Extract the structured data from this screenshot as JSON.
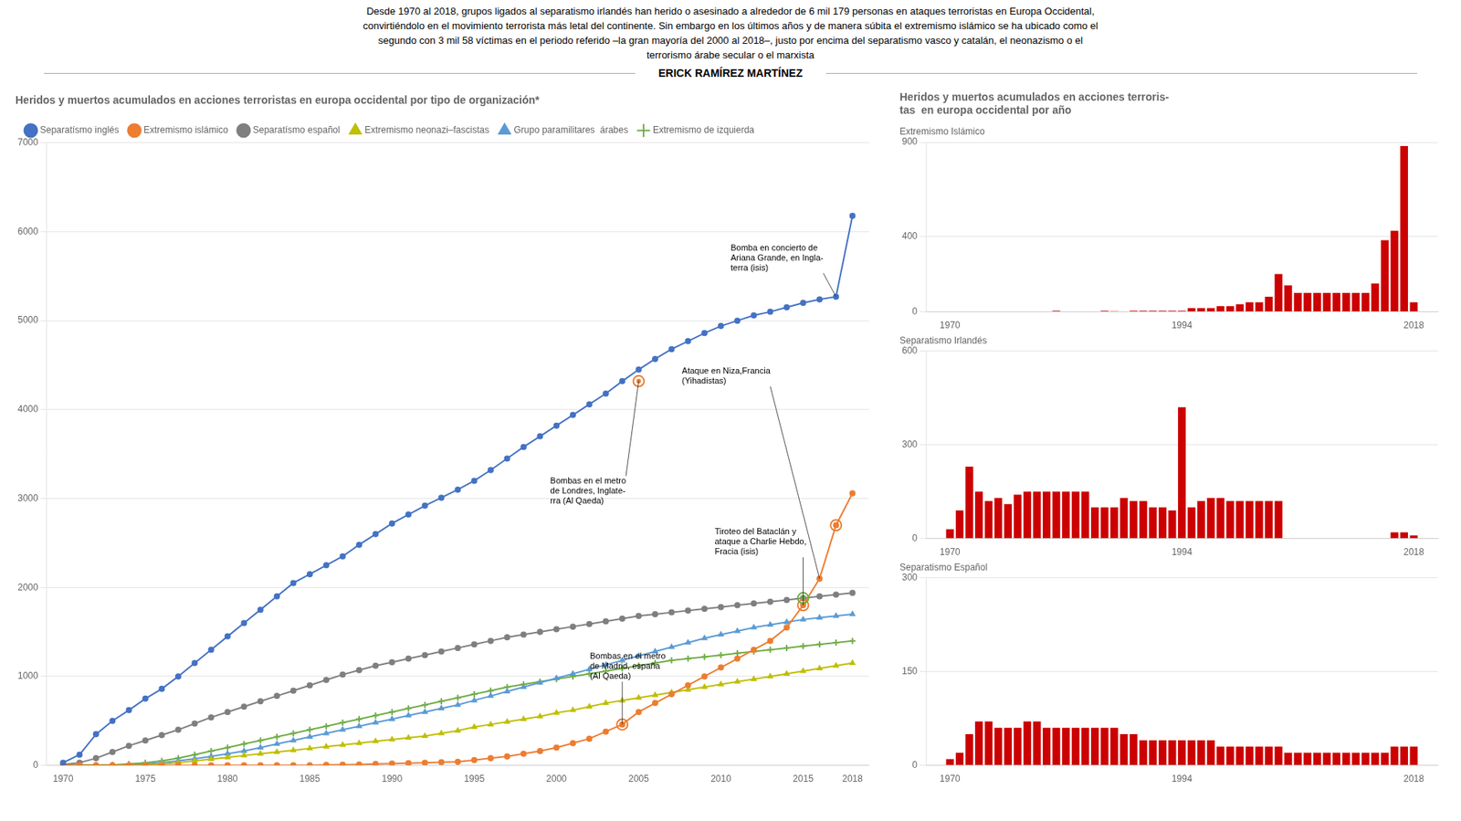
{
  "title": "Desde 1970 al 2018, grupos ligados al separatismo irlandés han herido o asesinado a alrededor de 6 mil 179 personas en ataques terroristas en Europa Occidental,\nconvirtiéndolo en el movimiento terrorista más letal del continente. Sin embargo en los últimos años y de manera súbita el extremismo islámico se ha ubicado como el\nsegundo con 3 mil 58 víctimas en el periodo referido –la gran mayoría del 2000 al 2018–, justo por encima del separatismo vasco y catalán, el neonazismo o el\nterrorismo árabe secular o el marxista",
  "subtitle": "ERICK RAMÍREZ MARTÍNEZ",
  "chart_data": [
    {
      "type": "line",
      "title": "Heridos y muertos acumulados en acciones terroristas en europa occidental por tipo de organización*",
      "x": [
        1970,
        1971,
        1972,
        1973,
        1974,
        1975,
        1976,
        1977,
        1978,
        1979,
        1980,
        1981,
        1982,
        1983,
        1984,
        1985,
        1986,
        1987,
        1988,
        1989,
        1990,
        1991,
        1992,
        1993,
        1994,
        1995,
        1996,
        1997,
        1998,
        1999,
        2000,
        2001,
        2002,
        2003,
        2004,
        2005,
        2006,
        2007,
        2008,
        2009,
        2010,
        2011,
        2012,
        2013,
        2014,
        2015,
        2016,
        2017,
        2018
      ],
      "xlim": [
        1969,
        2019
      ],
      "xticks": [
        1970,
        1975,
        1980,
        1985,
        1990,
        1995,
        2000,
        2005,
        2010,
        2015,
        2018
      ],
      "ylim": [
        0,
        7000
      ],
      "yticks": [
        0,
        1000,
        2000,
        3000,
        4000,
        5000,
        6000,
        7000
      ],
      "grid": "y",
      "legend": "top",
      "series": [
        {
          "name": "Separatísmo inglés",
          "color": "#4472C4",
          "marker": "circle",
          "values": [
            30,
            120,
            350,
            500,
            620,
            750,
            860,
            1000,
            1150,
            1300,
            1450,
            1600,
            1750,
            1900,
            2050,
            2150,
            2250,
            2350,
            2480,
            2600,
            2720,
            2820,
            2920,
            3010,
            3100,
            3200,
            3320,
            3450,
            3580,
            3700,
            3820,
            3940,
            4060,
            4180,
            4320,
            4450,
            4570,
            4680,
            4770,
            4860,
            4940,
            5000,
            5060,
            5100,
            5150,
            5200,
            5240,
            5270,
            6179
          ]
        },
        {
          "name": "Extremismo islámico",
          "color": "#ED7D31",
          "marker": "circle",
          "values": [
            0,
            0,
            0,
            0,
            0,
            0,
            0,
            0,
            0,
            0,
            0,
            0,
            0,
            0,
            0,
            0,
            5,
            8,
            10,
            15,
            20,
            25,
            30,
            35,
            40,
            60,
            80,
            100,
            130,
            160,
            200,
            250,
            300,
            380,
            460,
            600,
            700,
            800,
            900,
            1000,
            1100,
            1200,
            1300,
            1400,
            1550,
            1800,
            2100,
            2700,
            3058
          ]
        },
        {
          "name": "Separatísmo español",
          "color": "#7F7F7F",
          "marker": "circle",
          "values": [
            10,
            30,
            80,
            150,
            220,
            280,
            340,
            400,
            470,
            540,
            600,
            660,
            720,
            780,
            840,
            900,
            960,
            1020,
            1070,
            1120,
            1160,
            1200,
            1240,
            1280,
            1320,
            1360,
            1400,
            1440,
            1470,
            1500,
            1530,
            1560,
            1590,
            1620,
            1650,
            1680,
            1700,
            1720,
            1740,
            1760,
            1780,
            1800,
            1820,
            1840,
            1860,
            1880,
            1900,
            1920,
            1940
          ]
        },
        {
          "name": "Extremismo neonazi–fascistas",
          "color": "#BFBF00",
          "marker": "triangle",
          "values": [
            0,
            0,
            0,
            0,
            0,
            5,
            15,
            30,
            50,
            70,
            90,
            110,
            130,
            150,
            170,
            190,
            210,
            230,
            250,
            270,
            290,
            310,
            330,
            360,
            390,
            430,
            460,
            490,
            520,
            550,
            590,
            620,
            660,
            700,
            730,
            760,
            790,
            820,
            850,
            880,
            910,
            940,
            970,
            1000,
            1030,
            1060,
            1090,
            1120,
            1150
          ]
        },
        {
          "name": "Grupo paramilitares  árabes",
          "color": "#5B9BD5",
          "marker": "triangle",
          "values": [
            0,
            0,
            0,
            0,
            5,
            15,
            30,
            50,
            75,
            100,
            130,
            160,
            200,
            240,
            280,
            320,
            360,
            400,
            440,
            480,
            520,
            560,
            600,
            640,
            680,
            730,
            780,
            830,
            880,
            930,
            980,
            1030,
            1080,
            1130,
            1180,
            1230,
            1280,
            1330,
            1380,
            1430,
            1470,
            1510,
            1550,
            1580,
            1610,
            1640,
            1660,
            1680,
            1700
          ]
        },
        {
          "name": "Extremismo de izquierda",
          "color": "#70AD47",
          "marker": "cross",
          "values": [
            0,
            0,
            0,
            5,
            15,
            30,
            50,
            80,
            120,
            160,
            200,
            240,
            280,
            320,
            360,
            400,
            440,
            480,
            520,
            560,
            600,
            640,
            680,
            720,
            760,
            800,
            840,
            880,
            910,
            940,
            970,
            1000,
            1030,
            1060,
            1090,
            1120,
            1150,
            1180,
            1200,
            1220,
            1240,
            1260,
            1280,
            1300,
            1320,
            1340,
            1360,
            1380,
            1400
          ]
        }
      ],
      "annotations": [
        {
          "text": "Bombas en el metro\nde Londres, Inglate-\nrra (Al Qaeda)",
          "x": 2005,
          "y": 4320
        },
        {
          "text": "Ataque en Niza,Francia\n(Yihadistas)",
          "x": 2016,
          "y": 2100
        },
        {
          "text": "Bomba en concierto de\nAriana Grande, en Ingla-\nterra (isis)",
          "x": 2017,
          "y": 5270
        },
        {
          "text": "Tiroteo del Bataclán y\nataque a Charlie Hebdo,\nFracia (isis)",
          "x": 2015,
          "y": 1800
        },
        {
          "text": "Bombas en el metro\nde Madrid, españa\n(Al Qaeda)",
          "x": 2004,
          "y": 460
        }
      ],
      "highlights": [
        {
          "x": 2005,
          "y": 4320,
          "color": "#ED7D31"
        },
        {
          "x": 2015,
          "y": 1800,
          "color": "#ED7D31"
        },
        {
          "x": 2017,
          "y": 2700,
          "color": "#ED7D31"
        },
        {
          "x": 2004,
          "y": 460,
          "color": "#ED7D31"
        },
        {
          "x": 2015,
          "y": 1880,
          "color": "#70AD47"
        }
      ]
    },
    {
      "type": "bar",
      "title": "Heridos y muertos acumulados en acciones terroris-\ntas  en europa occidental por año",
      "subtitle": "Extremismo Islámico",
      "x": [
        1970,
        1971,
        1972,
        1973,
        1974,
        1975,
        1976,
        1977,
        1978,
        1979,
        1980,
        1981,
        1982,
        1983,
        1984,
        1985,
        1986,
        1987,
        1988,
        1989,
        1990,
        1991,
        1992,
        1993,
        1994,
        1995,
        1996,
        1997,
        1998,
        1999,
        2000,
        2001,
        2002,
        2003,
        2004,
        2005,
        2006,
        2007,
        2008,
        2009,
        2010,
        2011,
        2012,
        2013,
        2014,
        2015,
        2016,
        2017,
        2018
      ],
      "values": [
        0,
        0,
        0,
        0,
        0,
        0,
        0,
        0,
        0,
        0,
        0,
        5,
        0,
        0,
        0,
        0,
        5,
        3,
        2,
        5,
        5,
        5,
        5,
        5,
        5,
        20,
        20,
        20,
        30,
        30,
        40,
        50,
        50,
        80,
        200,
        140,
        100,
        100,
        100,
        100,
        100,
        100,
        100,
        100,
        150,
        380,
        430,
        880,
        50
      ],
      "color": "#CC0000",
      "xlim": [
        1967.5,
        2020.5
      ],
      "xticks": [
        1970,
        1994,
        2018
      ],
      "ylim": [
        0,
        900
      ],
      "yticks": [
        0,
        400,
        900
      ],
      "grid": "y"
    },
    {
      "type": "bar",
      "subtitle": "Separatismo Irlandés",
      "x": [
        1970,
        1971,
        1972,
        1973,
        1974,
        1975,
        1976,
        1977,
        1978,
        1979,
        1980,
        1981,
        1982,
        1983,
        1984,
        1985,
        1986,
        1987,
        1988,
        1989,
        1990,
        1991,
        1992,
        1993,
        1994,
        1995,
        1996,
        1997,
        1998,
        1999,
        2000,
        2001,
        2002,
        2003,
        2004,
        2005,
        2006,
        2007,
        2008,
        2009,
        2010,
        2011,
        2012,
        2013,
        2014,
        2015,
        2016,
        2017,
        2018
      ],
      "values": [
        30,
        90,
        230,
        150,
        120,
        130,
        110,
        140,
        150,
        150,
        150,
        150,
        150,
        150,
        150,
        100,
        100,
        100,
        130,
        120,
        120,
        100,
        100,
        90,
        420,
        100,
        120,
        130,
        130,
        120,
        120,
        120,
        120,
        120,
        120,
        0,
        0,
        0,
        0,
        0,
        0,
        0,
        0,
        0,
        0,
        0,
        20,
        20,
        10
      ],
      "color": "#CC0000",
      "xlim": [
        1967.5,
        2020.5
      ],
      "xticks": [
        1970,
        1994,
        2018
      ],
      "ylim": [
        0,
        600
      ],
      "yticks": [
        0,
        300,
        600
      ],
      "grid": "y"
    },
    {
      "type": "bar",
      "subtitle": "Separatismo Español",
      "x": [
        1970,
        1971,
        1972,
        1973,
        1974,
        1975,
        1976,
        1977,
        1978,
        1979,
        1980,
        1981,
        1982,
        1983,
        1984,
        1985,
        1986,
        1987,
        1988,
        1989,
        1990,
        1991,
        1992,
        1993,
        1994,
        1995,
        1996,
        1997,
        1998,
        1999,
        2000,
        2001,
        2002,
        2003,
        2004,
        2005,
        2006,
        2007,
        2008,
        2009,
        2010,
        2011,
        2012,
        2013,
        2014,
        2015,
        2016,
        2017,
        2018
      ],
      "values": [
        10,
        20,
        50,
        70,
        70,
        60,
        60,
        60,
        70,
        70,
        60,
        60,
        60,
        60,
        60,
        60,
        60,
        60,
        50,
        50,
        40,
        40,
        40,
        40,
        40,
        40,
        40,
        40,
        30,
        30,
        30,
        30,
        30,
        30,
        30,
        20,
        20,
        20,
        20,
        20,
        20,
        20,
        20,
        20,
        20,
        20,
        30,
        30,
        30
      ],
      "color": "#CC0000",
      "xlim": [
        1967.5,
        2020.5
      ],
      "xticks": [
        1970,
        1994,
        2018
      ],
      "ylim": [
        0,
        300
      ],
      "yticks": [
        0,
        150,
        300
      ],
      "grid": "y"
    }
  ]
}
